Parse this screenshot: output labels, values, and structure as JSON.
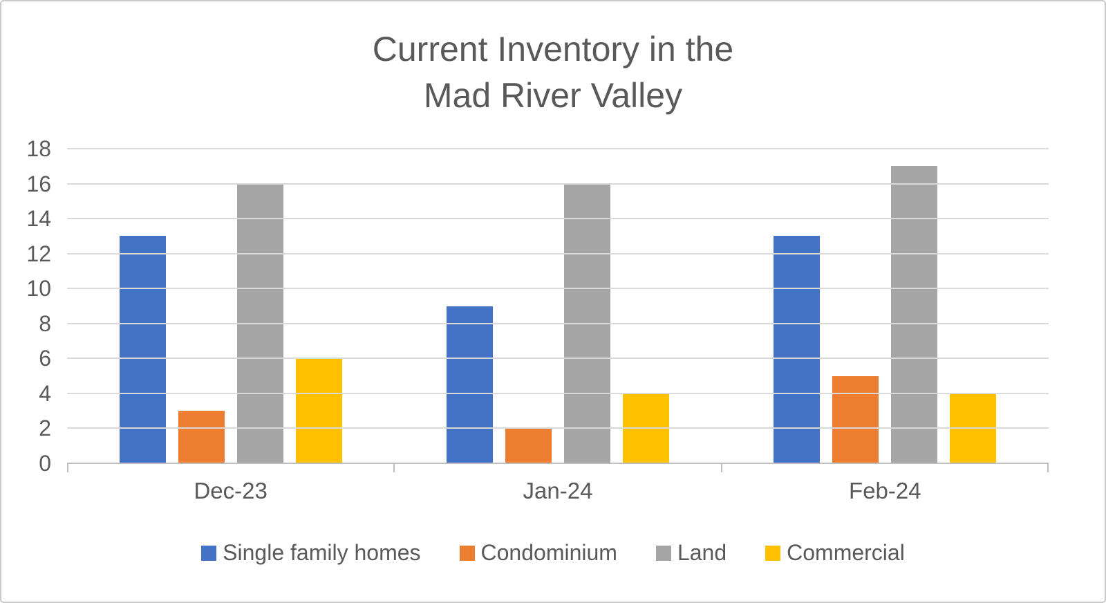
{
  "chart_data": {
    "type": "bar",
    "title": "Current Inventory in the Mad River Valley",
    "title_lines": [
      "Current Inventory in the",
      "Mad River Valley"
    ],
    "categories": [
      "Dec-23",
      "Jan-24",
      "Feb-24"
    ],
    "series": [
      {
        "name": "Single family homes",
        "color": "#4472C4",
        "values": [
          13,
          9,
          13
        ]
      },
      {
        "name": "Condominium",
        "color": "#ED7D31",
        "values": [
          3,
          2,
          5
        ]
      },
      {
        "name": "Land",
        "color": "#A5A5A5",
        "values": [
          16,
          16,
          17
        ]
      },
      {
        "name": "Commercial",
        "color": "#FFC000",
        "values": [
          6,
          4,
          4
        ]
      }
    ],
    "xlabel": "",
    "ylabel": "",
    "ylim": [
      0,
      18
    ],
    "yticks": [
      0,
      2,
      4,
      6,
      8,
      10,
      12,
      14,
      16,
      18
    ],
    "grid": true,
    "legend_position": "bottom"
  },
  "colors": {
    "background": "#FFFFFF",
    "frame_border": "#C9C9C9",
    "text": "#595959",
    "gridline": "#D9D9D9",
    "axis_line": "#BFBFBF"
  }
}
